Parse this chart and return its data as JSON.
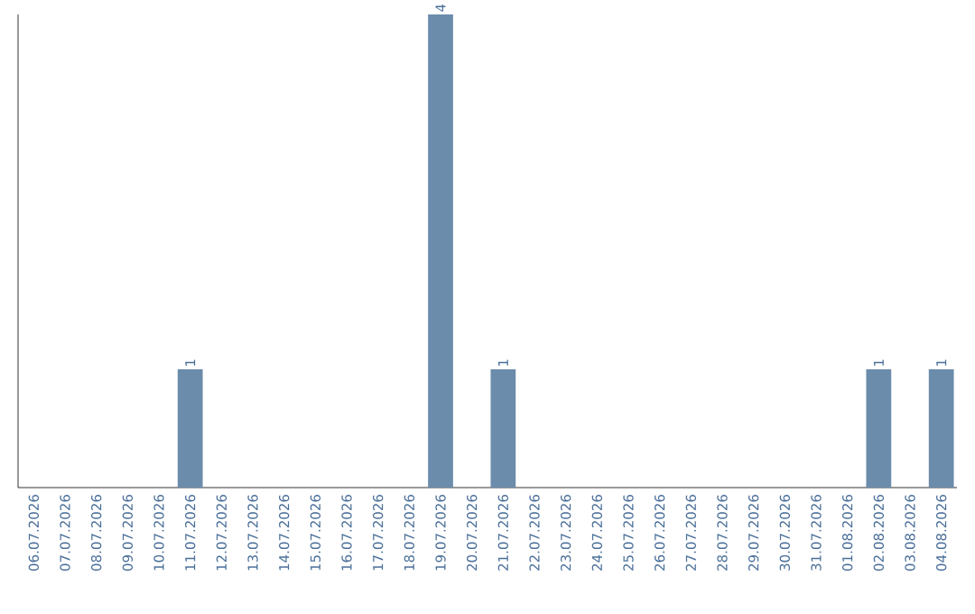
{
  "chart_data": {
    "type": "bar",
    "categories": [
      "06.07.2026",
      "07.07.2026",
      "08.07.2026",
      "09.07.2026",
      "10.07.2026",
      "11.07.2026",
      "12.07.2026",
      "13.07.2026",
      "14.07.2026",
      "15.07.2026",
      "16.07.2026",
      "17.07.2026",
      "18.07.2026",
      "19.07.2026",
      "20.07.2026",
      "21.07.2026",
      "22.07.2026",
      "23.07.2026",
      "24.07.2026",
      "25.07.2026",
      "26.07.2026",
      "27.07.2026",
      "28.07.2026",
      "29.07.2026",
      "30.07.2026",
      "31.07.2026",
      "01.08.2026",
      "02.08.2026",
      "03.08.2026",
      "04.08.2026"
    ],
    "values": [
      0,
      0,
      0,
      0,
      0,
      1,
      0,
      0,
      0,
      0,
      0,
      0,
      0,
      4,
      0,
      1,
      0,
      0,
      0,
      0,
      0,
      0,
      0,
      0,
      0,
      0,
      0,
      1,
      0,
      1
    ],
    "value_labels": [
      null,
      null,
      null,
      null,
      null,
      "1",
      null,
      null,
      null,
      null,
      null,
      null,
      null,
      "4",
      null,
      "1",
      null,
      null,
      null,
      null,
      null,
      null,
      null,
      null,
      null,
      null,
      null,
      "1",
      null,
      "1"
    ],
    "color": "#6b8cab"
  }
}
